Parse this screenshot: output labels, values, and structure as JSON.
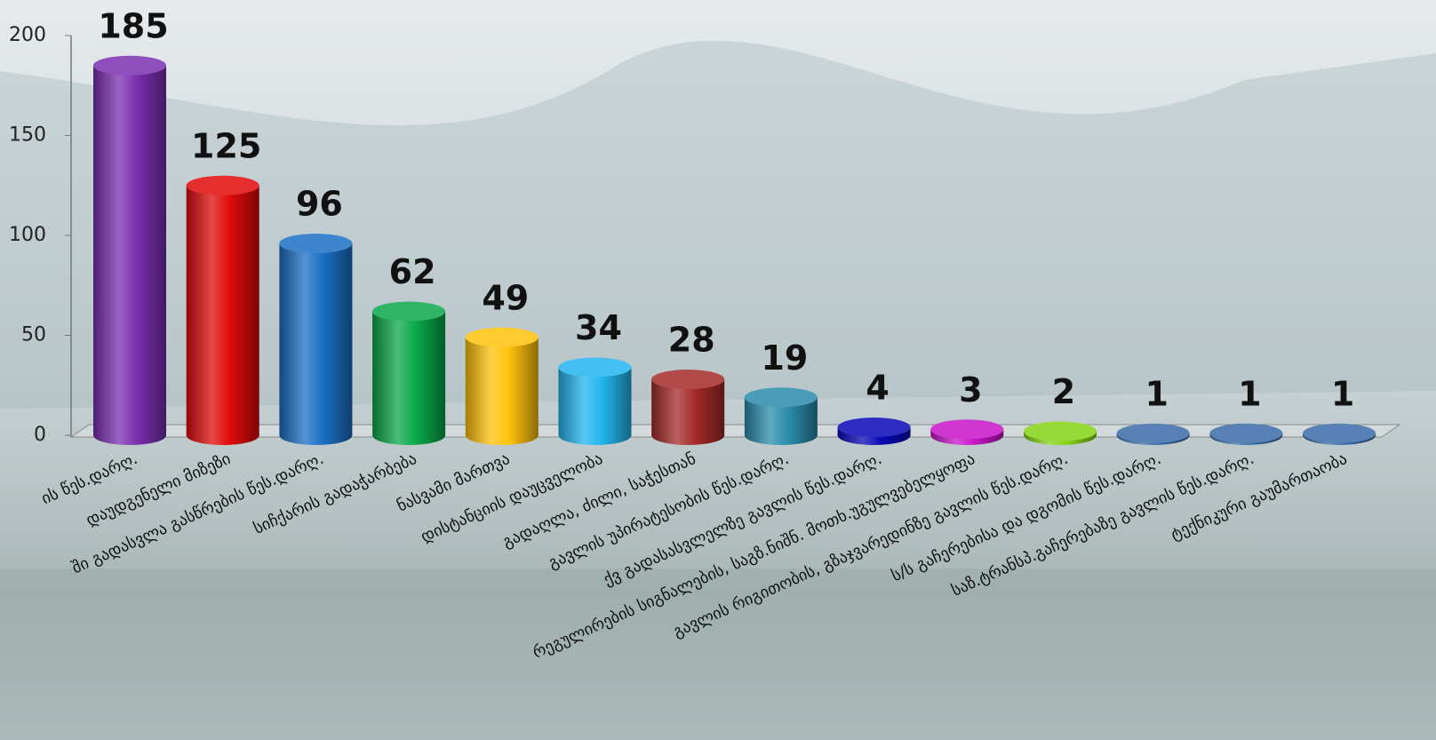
{
  "chart_data": {
    "type": "bar",
    "categories": [
      "ის წეს.დარღ.",
      "დაუდგენელი მიზეზი",
      "ში გადასვლა გასწრების წეს.დარღ.",
      "სიჩქარის გადაჭარბება",
      "ნასვამი მართვა",
      "დისტანციის დაუცველობა",
      "გადაღლა, ძილი, საჭესთან",
      "გავლის უპირატესობის წეს.დარღ.",
      "ქვ გადასასვლელზე გავლის წეს.დარღ.",
      "რეგულირების სიგნალების, საგზ.ნიშნ. მოთხ.უგულვებელყოფა",
      "გავლის რიგითობის, გზაჯვარედინზე გავლის წეს.დარღ.",
      "ს/ს გაჩერებისა და დგომის წეს.დარღ.",
      "საზ.ტრანსპ.გაჩერებაზე გავლის წეს.დარღ.",
      "ტექნიკური გაუმართაობა"
    ],
    "values": [
      185,
      125,
      96,
      62,
      49,
      34,
      28,
      19,
      4,
      3,
      2,
      1,
      1,
      1
    ],
    "colors": [
      "#7a2fb0",
      "#e00a0a",
      "#1b6fc4",
      "#0aa84a",
      "#ffc20a",
      "#22b4ee",
      "#a52a2a",
      "#2a8cac",
      "#0808b8",
      "#c814c8",
      "#84d414",
      "#3a6ca8",
      "#3a6ca8",
      "#3a6ca8"
    ],
    "ylim": [
      0,
      200
    ],
    "yticks": [
      0,
      50,
      100,
      150,
      200
    ]
  }
}
